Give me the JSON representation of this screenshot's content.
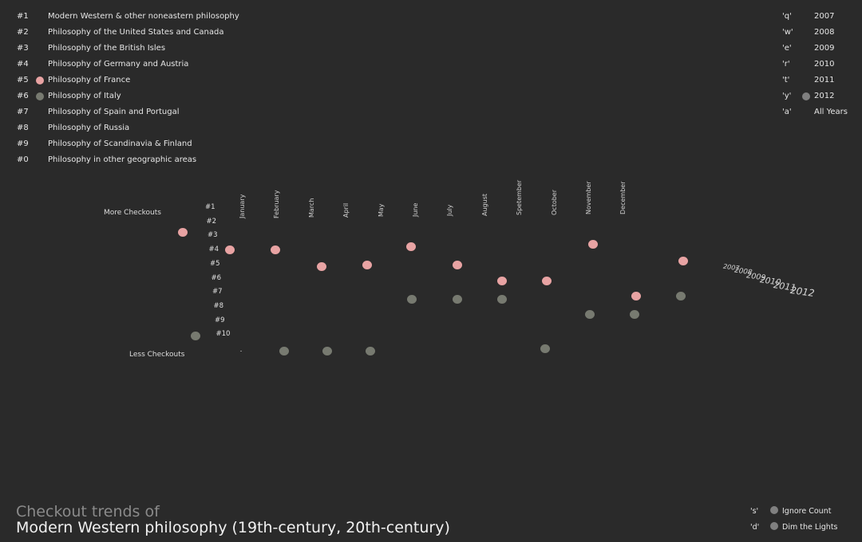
{
  "categories": [
    {
      "key": "#1",
      "label": "Modern Western & other noneastern philosophy"
    },
    {
      "key": "#2",
      "label": "Philosophy of the United States and Canada"
    },
    {
      "key": "#3",
      "label": "Philosophy of the British Isles"
    },
    {
      "key": "#4",
      "label": "Philosophy of Germany and Austria"
    },
    {
      "key": "#5",
      "label": "Philosophy of France",
      "selected": true,
      "color": "#e8a3a3"
    },
    {
      "key": "#6",
      "label": "Philosophy of Italy",
      "selected": true,
      "color": "#777a70"
    },
    {
      "key": "#7",
      "label": "Philosophy of Spain and Portugal"
    },
    {
      "key": "#8",
      "label": "Philosophy of Russia"
    },
    {
      "key": "#9",
      "label": "Philosophy of Scandinavia & Finland"
    },
    {
      "key": "#0",
      "label": "Philosophy in other geographic areas"
    }
  ],
  "years": [
    {
      "key": "'q'",
      "label": "2007"
    },
    {
      "key": "'w'",
      "label": "2008"
    },
    {
      "key": "'e'",
      "label": "2009"
    },
    {
      "key": "'r'",
      "label": "2010"
    },
    {
      "key": "'t'",
      "label": "2011"
    },
    {
      "key": "'y'",
      "label": "2012",
      "selected": true
    },
    {
      "key": "'a'",
      "label": "All Years"
    }
  ],
  "options": [
    {
      "key": "'s'",
      "label": "Ignore Count"
    },
    {
      "key": "'d'",
      "label": "Dim the Lights"
    }
  ],
  "title": {
    "line1": "Checkout trends of",
    "line2": "Modern Western philosophy (19th-century, 20th-century)"
  },
  "chart_data": {
    "type": "scatter",
    "ylabel_top": "More Checkouts",
    "ylabel_bottom": "Less Checkouts",
    "rank_labels": [
      "#1",
      "#2",
      "#3",
      "#4",
      "#5",
      "#6",
      "#7",
      "#8",
      "#9",
      "#10"
    ],
    "months": [
      "January",
      "February",
      "March",
      "April",
      "May",
      "June",
      "July",
      "August",
      "Spetember",
      "October",
      "November",
      "December"
    ],
    "depth_years": [
      "2007",
      "2008",
      "2009",
      "2010",
      "2011",
      "2012"
    ],
    "series": [
      {
        "name": "Philosophy of France",
        "color": "#e8a3a3",
        "points": [
          [
            -0.76,
            2.8
          ],
          [
            0.61,
            4.05
          ],
          [
            1.92,
            4.0
          ],
          [
            3.26,
            5.2
          ],
          [
            4.56,
            5.1
          ],
          [
            5.85,
            3.8
          ],
          [
            7.17,
            5.1
          ],
          [
            8.46,
            6.25
          ],
          [
            9.75,
            6.2
          ],
          [
            11.1,
            3.65
          ],
          [
            12.34,
            7.3
          ],
          [
            13.7,
            4.8
          ]
        ]
      },
      {
        "name": "Philosophy of Italy",
        "color": "#777a70",
        "points": [
          [
            -0.39,
            10.15
          ],
          [
            2.18,
            11.2
          ],
          [
            3.42,
            11.2
          ],
          [
            4.67,
            11.2
          ],
          [
            5.87,
            7.55
          ],
          [
            7.17,
            7.55
          ],
          [
            8.46,
            7.5
          ],
          [
            9.71,
            11.0
          ],
          [
            11.0,
            8.6
          ],
          [
            12.3,
            8.6
          ],
          [
            13.63,
            7.3
          ]
        ]
      }
    ]
  }
}
